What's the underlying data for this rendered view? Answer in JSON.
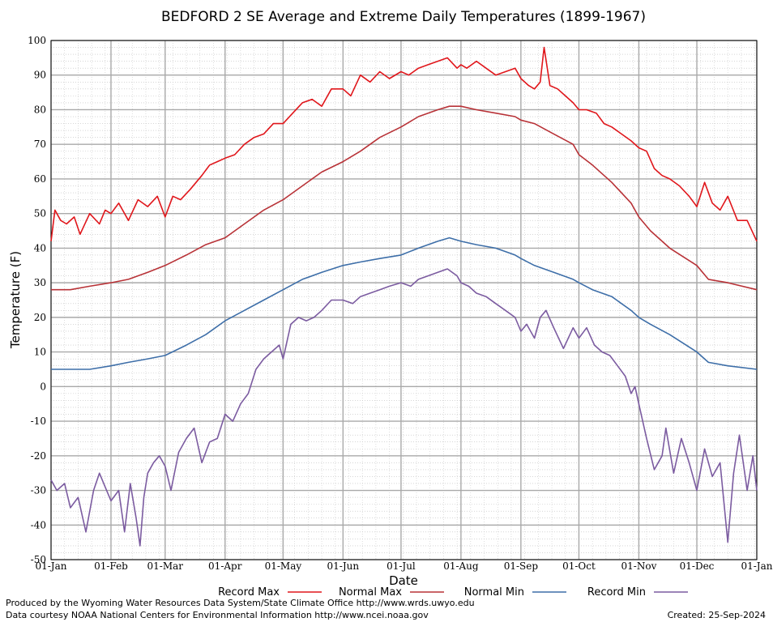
{
  "chart_data": {
    "type": "line",
    "title": "BEDFORD 2 SE Average and Extreme Daily Temperatures (1899-1967)",
    "xlabel": "Date",
    "ylabel": "Temperature (F)",
    "ylim": [
      -50,
      100
    ],
    "yticks": [
      -50,
      -40,
      -30,
      -20,
      -10,
      0,
      10,
      20,
      30,
      40,
      50,
      60,
      70,
      80,
      90,
      100
    ],
    "xlim": [
      0,
      365
    ],
    "xticks": [
      {
        "label": "01-Jan",
        "day": 0
      },
      {
        "label": "01-Feb",
        "day": 31
      },
      {
        "label": "01-Mar",
        "day": 59
      },
      {
        "label": "01-Apr",
        "day": 90
      },
      {
        "label": "01-May",
        "day": 120
      },
      {
        "label": "01-Jun",
        "day": 151
      },
      {
        "label": "01-Jul",
        "day": 181
      },
      {
        "label": "01-Aug",
        "day": 212
      },
      {
        "label": "01-Sep",
        "day": 243
      },
      {
        "label": "01-Oct",
        "day": 273
      },
      {
        "label": "01-Nov",
        "day": 304
      },
      {
        "label": "01-Dec",
        "day": 334
      },
      {
        "label": "01-Jan",
        "day": 365
      }
    ],
    "grid": true,
    "legend_position": "bottom",
    "series": [
      {
        "name": "Record Max",
        "color": "#e0161b",
        "x": [
          0,
          2,
          5,
          8,
          12,
          15,
          20,
          25,
          28,
          31,
          35,
          40,
          45,
          50,
          55,
          59,
          63,
          67,
          72,
          78,
          82,
          86,
          90,
          95,
          100,
          105,
          110,
          115,
          120,
          125,
          130,
          135,
          140,
          145,
          151,
          155,
          160,
          165,
          170,
          175,
          181,
          185,
          190,
          195,
          200,
          205,
          210,
          212,
          215,
          220,
          225,
          230,
          235,
          240,
          243,
          247,
          250,
          253,
          255,
          258,
          262,
          266,
          270,
          273,
          277,
          282,
          286,
          290,
          295,
          300,
          304,
          308,
          312,
          316,
          320,
          325,
          330,
          334,
          338,
          342,
          346,
          350,
          355,
          360,
          365
        ],
        "values": [
          42,
          51,
          48,
          47,
          49,
          44,
          50,
          47,
          51,
          50,
          53,
          48,
          54,
          52,
          55,
          49,
          55,
          54,
          57,
          61,
          64,
          65,
          66,
          67,
          70,
          72,
          73,
          76,
          76,
          79,
          82,
          83,
          81,
          86,
          86,
          84,
          90,
          88,
          91,
          89,
          91,
          90,
          92,
          93,
          94,
          95,
          92,
          93,
          92,
          94,
          92,
          90,
          91,
          92,
          89,
          87,
          86,
          88,
          98,
          87,
          86,
          84,
          82,
          80,
          80,
          79,
          76,
          75,
          73,
          71,
          69,
          68,
          63,
          61,
          60,
          58,
          55,
          52,
          59,
          53,
          51,
          55,
          48,
          48,
          42
        ]
      },
      {
        "name": "Normal Max",
        "color": "#b83237",
        "x": [
          0,
          10,
          20,
          31,
          40,
          50,
          59,
          70,
          80,
          90,
          100,
          110,
          120,
          130,
          140,
          151,
          160,
          170,
          181,
          190,
          200,
          206,
          212,
          220,
          230,
          240,
          243,
          250,
          260,
          270,
          273,
          280,
          290,
          300,
          304,
          310,
          320,
          334,
          340,
          350,
          365
        ],
        "values": [
          28,
          28,
          29,
          30,
          31,
          33,
          35,
          38,
          41,
          43,
          47,
          51,
          54,
          58,
          62,
          65,
          68,
          72,
          75,
          78,
          80,
          81,
          81,
          80,
          79,
          78,
          77,
          76,
          73,
          70,
          67,
          64,
          59,
          53,
          49,
          45,
          40,
          35,
          31,
          30,
          28
        ]
      },
      {
        "name": "Normal Min",
        "color": "#3d6ea8",
        "x": [
          0,
          10,
          20,
          31,
          40,
          50,
          59,
          70,
          80,
          90,
          100,
          110,
          120,
          130,
          140,
          151,
          160,
          170,
          181,
          190,
          200,
          206,
          212,
          220,
          230,
          240,
          243,
          250,
          260,
          270,
          273,
          280,
          290,
          300,
          304,
          310,
          320,
          334,
          340,
          350,
          365
        ],
        "values": [
          5,
          5,
          5,
          6,
          7,
          8,
          9,
          12,
          15,
          19,
          22,
          25,
          28,
          31,
          33,
          35,
          36,
          37,
          38,
          40,
          42,
          43,
          42,
          41,
          40,
          38,
          37,
          35,
          33,
          31,
          30,
          28,
          26,
          22,
          20,
          18,
          15,
          10,
          7,
          6,
          5
        ]
      },
      {
        "name": "Record Min",
        "color": "#7b5ba0",
        "x": [
          0,
          3,
          7,
          10,
          14,
          18,
          22,
          25,
          28,
          31,
          35,
          38,
          41,
          44,
          46,
          48,
          50,
          53,
          56,
          59,
          62,
          66,
          70,
          74,
          78,
          82,
          86,
          90,
          94,
          98,
          102,
          106,
          110,
          114,
          118,
          120,
          124,
          128,
          132,
          136,
          140,
          145,
          151,
          156,
          160,
          165,
          170,
          175,
          181,
          186,
          190,
          195,
          200,
          205,
          210,
          212,
          216,
          220,
          225,
          230,
          235,
          240,
          243,
          246,
          250,
          253,
          256,
          260,
          265,
          270,
          273,
          277,
          281,
          285,
          289,
          293,
          297,
          300,
          302,
          304,
          308,
          312,
          316,
          318,
          322,
          326,
          330,
          334,
          338,
          342,
          346,
          350,
          353,
          356,
          360,
          363,
          365
        ],
        "values": [
          -27,
          -30,
          -28,
          -35,
          -32,
          -42,
          -30,
          -25,
          -29,
          -33,
          -30,
          -42,
          -28,
          -38,
          -46,
          -32,
          -25,
          -22,
          -20,
          -23,
          -30,
          -19,
          -15,
          -12,
          -22,
          -16,
          -15,
          -8,
          -10,
          -5,
          -2,
          5,
          8,
          10,
          12,
          8,
          18,
          20,
          19,
          20,
          22,
          25,
          25,
          24,
          26,
          27,
          28,
          29,
          30,
          29,
          31,
          32,
          33,
          34,
          32,
          30,
          29,
          27,
          26,
          24,
          22,
          20,
          16,
          18,
          14,
          20,
          22,
          17,
          11,
          17,
          14,
          17,
          12,
          10,
          9,
          6,
          3,
          -2,
          0,
          -5,
          -15,
          -24,
          -20,
          -12,
          -25,
          -15,
          -22,
          -30,
          -18,
          -26,
          -22,
          -45,
          -25,
          -14,
          -30,
          -20,
          -30
        ]
      }
    ]
  },
  "legend": [
    "Record Max",
    "Normal Max",
    "Normal Min",
    "Record Min"
  ],
  "footer": {
    "produced_by": "Produced by the Wyoming Water Resources Data System/State Climate Office http://www.wrds.uwyo.edu",
    "data_courtesy": "Data courtesy NOAA National Centers for Environmental Information http://www.ncei.noaa.gov",
    "created": "Created:  25-Sep-2024"
  }
}
